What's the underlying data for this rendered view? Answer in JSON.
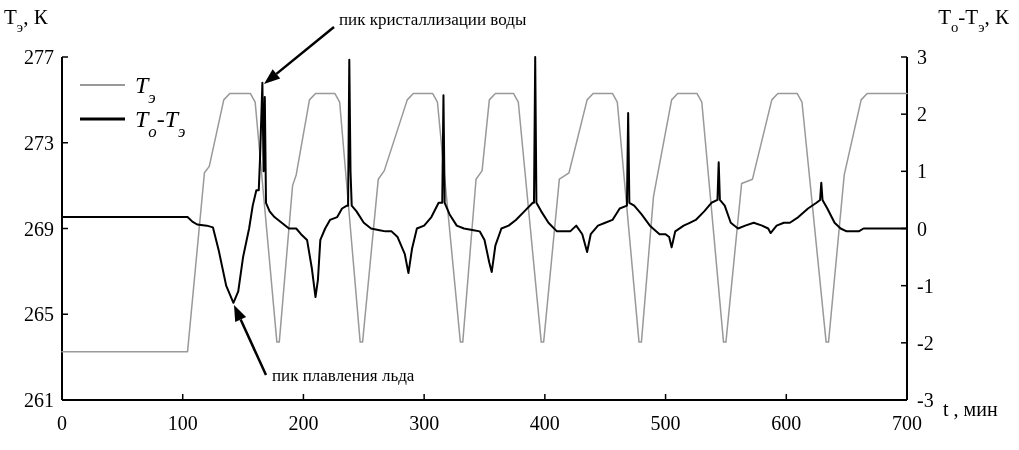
{
  "chart_data": {
    "type": "line",
    "xlabel": "t , мин",
    "ylabel": "T$_{э}$, К",
    "y2label": "T$_{о}$-T$_{э}$, К",
    "xlim": [
      0,
      700
    ],
    "xticks": [
      0,
      100,
      200,
      300,
      400,
      500,
      600,
      700
    ],
    "ylim": [
      261,
      277
    ],
    "yticks": [
      261,
      265,
      269,
      273,
      277
    ],
    "y2lim": [
      -3,
      3
    ],
    "y2ticks": [
      -3,
      -2,
      -1,
      0,
      1,
      2,
      3
    ],
    "grid": false,
    "legend": "top left",
    "marker": "none",
    "line_style": "solid",
    "annotations": [
      "пик кристаллизации воды",
      "пик плавления льда"
    ],
    "series": [
      {
        "name": "T$_{э}$",
        "color": "#999999",
        "x": [
          0,
          104,
          118,
          122,
          134,
          139,
          156,
          160,
          178,
          180,
          191,
          194,
          205,
          210,
          226,
          230,
          247,
          249,
          262,
          267,
          286,
          291,
          307,
          311,
          330,
          332,
          343,
          348,
          354,
          359,
          374,
          378,
          397,
          399,
          412,
          420,
          435,
          440,
          456,
          460,
          478,
          480,
          490,
          505,
          510,
          526,
          530,
          548,
          550,
          563,
          572,
          588,
          593,
          609,
          613,
          633,
          635,
          648,
          662,
          667,
          700
        ],
        "values": [
          263.25,
          263.25,
          271.6,
          271.9,
          275.0,
          275.3,
          275.3,
          274.9,
          263.7,
          263.7,
          271.0,
          271.5,
          275.0,
          275.3,
          275.3,
          274.9,
          263.7,
          263.7,
          271.3,
          271.7,
          275.0,
          275.3,
          275.3,
          274.9,
          263.7,
          263.7,
          271.3,
          271.7,
          275.0,
          275.3,
          275.3,
          274.9,
          263.7,
          263.7,
          271.3,
          271.6,
          275.0,
          275.3,
          275.3,
          274.9,
          263.7,
          263.7,
          270.5,
          275.0,
          275.3,
          275.3,
          274.9,
          263.7,
          263.7,
          271.1,
          271.3,
          275.0,
          275.3,
          275.3,
          274.9,
          263.7,
          263.7,
          271.5,
          275.0,
          275.3,
          275.3
        ]
      },
      {
        "name": "T$_{о}$-T$_{э}$",
        "color": "#000000",
        "axis": "y2",
        "x": [
          0,
          104,
          108,
          112,
          120,
          125,
          130,
          136,
          142,
          146,
          150,
          155,
          158,
          161,
          163,
          164,
          166,
          167,
          168,
          169,
          172,
          176,
          182,
          188,
          194,
          198,
          203,
          207,
          210,
          212,
          214,
          218,
          222,
          228,
          232,
          236,
          237,
          238,
          239,
          240,
          244,
          250,
          256,
          263,
          268,
          273,
          278,
          284,
          287,
          290,
          294,
          300,
          306,
          312,
          315,
          316,
          317,
          321,
          327,
          333,
          341,
          346,
          350,
          354,
          356,
          359,
          364,
          370,
          376,
          383,
          390,
          391,
          392,
          393,
          397,
          403,
          410,
          416,
          421,
          426,
          431,
          435,
          438,
          444,
          450,
          456,
          462,
          468,
          469,
          470,
          474,
          480,
          487,
          495,
          500,
          503,
          505,
          508,
          515,
          520,
          525,
          532,
          538,
          543,
          544,
          545,
          549,
          554,
          560,
          566,
          573,
          580,
          585,
          587,
          592,
          598,
          603,
          610,
          618,
          625,
          628,
          629,
          630,
          634,
          640,
          645,
          650,
          655,
          660,
          664,
          700
        ],
        "values": [
          0.2,
          0.2,
          0.12,
          0.07,
          0.05,
          0.02,
          -0.4,
          -1.0,
          -1.3,
          -1.1,
          -0.5,
          0.0,
          0.4,
          0.67,
          0.67,
          1.2,
          2.55,
          1.0,
          2.3,
          0.45,
          0.3,
          0.2,
          0.1,
          0.0,
          0.0,
          -0.1,
          -0.2,
          -0.7,
          -1.2,
          -0.9,
          -0.2,
          0.0,
          0.15,
          0.2,
          0.35,
          0.4,
          0.4,
          2.95,
          1.0,
          0.4,
          0.3,
          0.1,
          0.0,
          -0.03,
          -0.05,
          -0.05,
          -0.15,
          -0.45,
          -0.78,
          -0.35,
          0.0,
          0.05,
          0.2,
          0.45,
          0.45,
          2.33,
          0.45,
          0.25,
          0.05,
          0.0,
          -0.03,
          -0.05,
          -0.2,
          -0.6,
          -0.76,
          -0.3,
          0.0,
          0.05,
          0.15,
          0.3,
          0.45,
          0.45,
          3.0,
          0.45,
          0.3,
          0.1,
          -0.05,
          -0.05,
          -0.05,
          0.05,
          -0.1,
          -0.41,
          -0.1,
          0.05,
          0.1,
          0.15,
          0.35,
          0.4,
          2.02,
          0.45,
          0.4,
          0.25,
          0.05,
          -0.1,
          -0.1,
          -0.15,
          -0.33,
          -0.05,
          0.05,
          0.1,
          0.15,
          0.3,
          0.45,
          0.5,
          1.16,
          0.5,
          0.4,
          0.1,
          0.0,
          0.05,
          0.1,
          0.05,
          0.0,
          -0.08,
          0.05,
          0.1,
          0.1,
          0.2,
          0.35,
          0.45,
          0.5,
          0.8,
          0.5,
          0.35,
          0.1,
          0.0,
          -0.05,
          -0.05,
          -0.05,
          0.0,
          0.0
        ]
      }
    ]
  }
}
